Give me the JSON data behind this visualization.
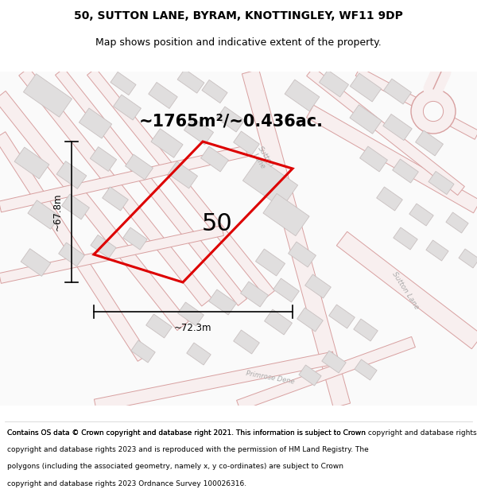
{
  "title": "50, SUTTON LANE, BYRAM, KNOTTINGLEY, WF11 9DP",
  "subtitle": "Map shows position and indicative extent of the property.",
  "area_text": "~1765m²/~0.436ac.",
  "plot_number": "50",
  "width_label": "~72.3m",
  "height_label": "~67.8m",
  "footer": "Contains OS data © Crown copyright and database right 2021. This information is subject to Crown copyright and database rights 2023 and is reproduced with the permission of HM Land Registry. The polygons (including the associated geometry, namely x, y co-ordinates) are subject to Crown copyright and database rights 2023 Ordnance Survey 100026316.",
  "map_bg": "#fafafa",
  "road_color": "#f0bcbc",
  "road_outline_color": "#d8a0a0",
  "building_color": "#e0dede",
  "building_edge": "#c8c0c0",
  "plot_outline_color": "#dd0000",
  "plot_fill_color": "none",
  "title_fontsize": 10,
  "subtitle_fontsize": 9,
  "area_fontsize": 15,
  "plot_label_fontsize": 18,
  "dim_fontsize": 8.5,
  "footer_fontsize": 6.5
}
